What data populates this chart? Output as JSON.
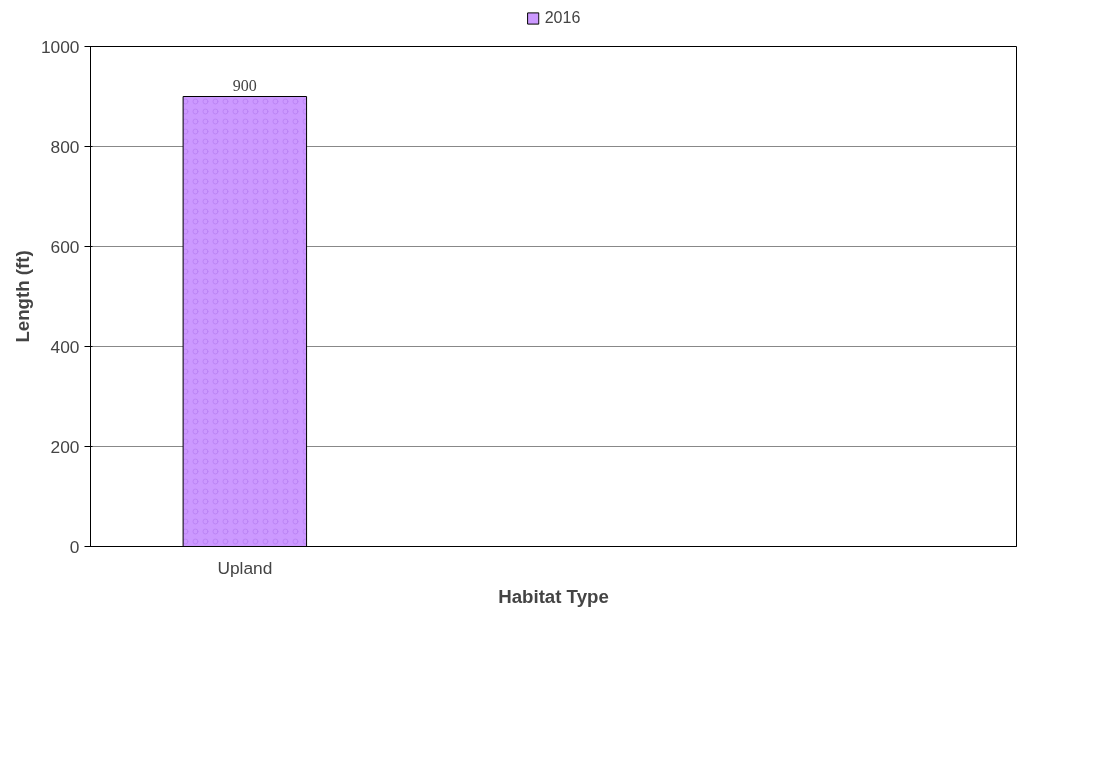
{
  "chart_data": {
    "type": "bar",
    "xlabel": "Habitat Type",
    "ylabel": "Length (ft)",
    "categories": [
      "Upland",
      null,
      null
    ],
    "series": [
      {
        "name": "2016",
        "color": "#cc99ff",
        "values": [
          900,
          null,
          null
        ]
      }
    ],
    "ylim": [
      0,
      1000
    ],
    "yticks": [
      0,
      200,
      400,
      600,
      800,
      1000
    ],
    "grid": "y",
    "legend": "top",
    "data_labels": true
  }
}
